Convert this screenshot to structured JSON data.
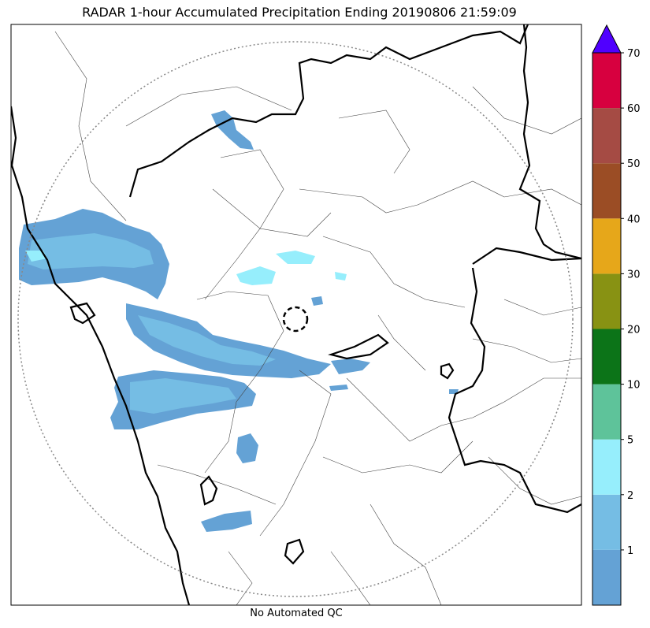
{
  "title": "RADAR 1-hour Accumulated Precipitation Ending 20190806 21:59:09",
  "footer": "No Automated QC",
  "colorbar": {
    "segments": [
      {
        "color": "#64a2d5"
      },
      {
        "color": "#75bde4"
      },
      {
        "color": "#96eefc"
      },
      {
        "color": "#5ec39a"
      },
      {
        "color": "#0c7418"
      },
      {
        "color": "#889213"
      },
      {
        "color": "#e6a71a"
      },
      {
        "color": "#9b4d25"
      },
      {
        "color": "#a54b44"
      },
      {
        "color": "#d7003f"
      }
    ],
    "extend_color": "#5000ff",
    "tick_labels": [
      "1",
      "2",
      "5",
      "10",
      "20",
      "30",
      "40",
      "50",
      "60",
      "70"
    ]
  },
  "colors": {
    "rain_light": "#64a2d5",
    "rain_mid": "#75bde4",
    "rain_cyan": "#96eefc",
    "range_ring": "#888888",
    "state_border": "#000000",
    "district_border": "#444444"
  }
}
